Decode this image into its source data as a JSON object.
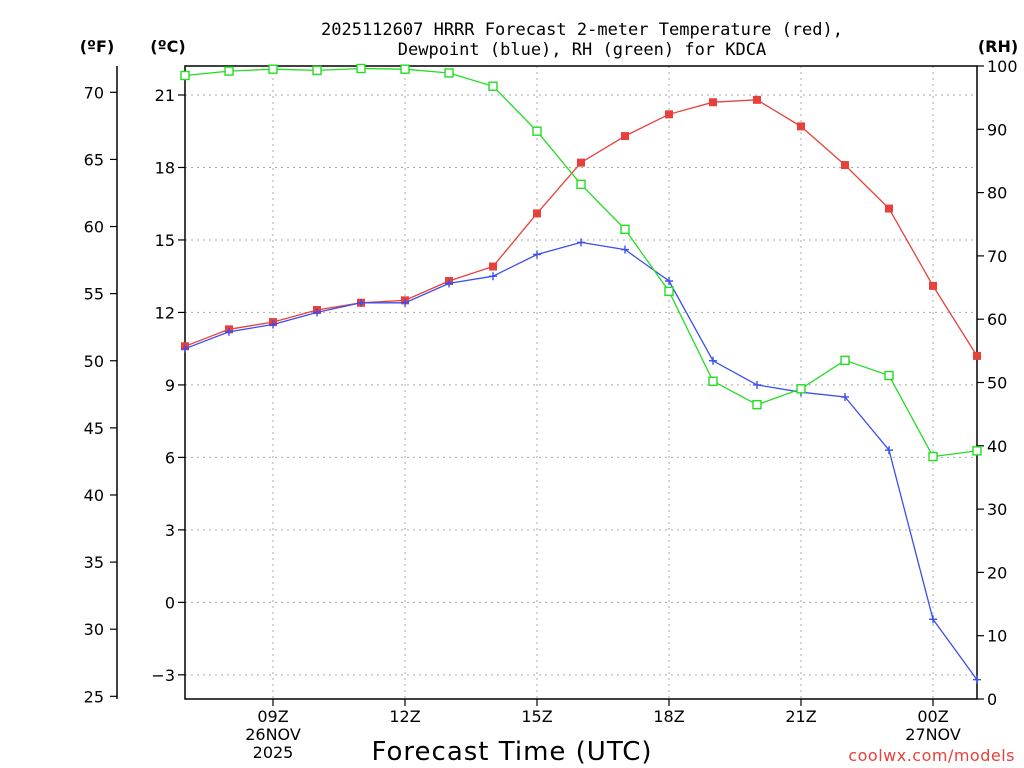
{
  "chart_data": {
    "type": "line",
    "title_line1": "2025112607 HRRR Forecast 2-meter Temperature (red),",
    "title_line2": "Dewpoint (blue), RH (green) for KDCA",
    "xlabel": "Forecast Time (UTC)",
    "credit": "coolwx.com/models",
    "left_outer_unit": "(ºF)",
    "left_inner_unit": "(ºC)",
    "right_unit": "(RH)",
    "x_hours": [
      7,
      8,
      9,
      10,
      11,
      12,
      13,
      14,
      15,
      16,
      17,
      18,
      19,
      20,
      21,
      22,
      23,
      24,
      25
    ],
    "x_range": [
      7,
      25
    ],
    "x_ticks": [
      {
        "hour": 9,
        "lines": [
          "09Z",
          "26NOV",
          "2025"
        ]
      },
      {
        "hour": 12,
        "lines": [
          "12Z"
        ]
      },
      {
        "hour": 15,
        "lines": [
          "15Z"
        ]
      },
      {
        "hour": 18,
        "lines": [
          "18Z"
        ]
      },
      {
        "hour": 21,
        "lines": [
          "21Z"
        ]
      },
      {
        "hour": 24,
        "lines": [
          "00Z",
          "27NOV"
        ]
      }
    ],
    "celsius_range": [
      -4,
      22.2
    ],
    "celsius_ticks": [
      "-3",
      "0",
      "3",
      "6",
      "9",
      "12",
      "15",
      "18",
      "21"
    ],
    "fahrenheit_ticks": [
      "25",
      "30",
      "35",
      "40",
      "45",
      "50",
      "55",
      "60",
      "65",
      "70"
    ],
    "rh_range": [
      0,
      100
    ],
    "rh_ticks": [
      "0",
      "10",
      "20",
      "30",
      "40",
      "50",
      "60",
      "70",
      "80",
      "90",
      "100"
    ],
    "colors": {
      "temperature": "#e8403a",
      "dewpoint": "#3a4ef0",
      "rh": "#22dd22"
    },
    "series": [
      {
        "name": "Temperature",
        "unit": "C",
        "marker": "square-filled",
        "values": [
          10.6,
          11.3,
          11.6,
          12.1,
          12.4,
          12.5,
          13.3,
          13.9,
          16.1,
          18.2,
          19.3,
          20.2,
          20.7,
          20.8,
          19.7,
          18.1,
          16.3,
          13.1,
          10.2
        ]
      },
      {
        "name": "Dewpoint",
        "unit": "C",
        "marker": "plus",
        "values": [
          10.5,
          11.2,
          11.5,
          12.0,
          12.4,
          12.4,
          13.2,
          13.5,
          14.4,
          14.9,
          14.6,
          13.3,
          10.0,
          9.0,
          8.7,
          8.5,
          6.3,
          -0.7,
          -3.2
        ]
      },
      {
        "name": "RH",
        "unit": "%",
        "marker": "square-open",
        "values": [
          98.5,
          99.2,
          99.5,
          99.3,
          99.6,
          99.5,
          98.9,
          96.8,
          89.7,
          81.3,
          74.2,
          64.4,
          50.2,
          46.5,
          49.0,
          53.5,
          51.1,
          38.3,
          39.2
        ]
      }
    ]
  }
}
